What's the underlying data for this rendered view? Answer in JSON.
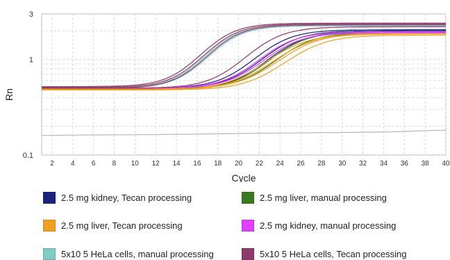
{
  "chart_data": {
    "type": "line",
    "xlabel": "Cycle",
    "ylabel": "Rn",
    "xlim": [
      1,
      40
    ],
    "ylim": [
      0.1,
      3
    ],
    "yscale": "log",
    "xticks": [
      2,
      4,
      6,
      8,
      10,
      12,
      14,
      16,
      18,
      20,
      22,
      24,
      26,
      28,
      30,
      32,
      34,
      36,
      38,
      40
    ],
    "yticks": [
      0.1,
      1,
      3
    ],
    "ytick_labels": [
      "0.1",
      "1",
      "3"
    ],
    "grid": true,
    "legend_position": "bottom",
    "baseline_series": {
      "color": "#b8b8b8",
      "x": [
        1,
        5,
        10,
        15,
        20,
        25,
        30,
        35,
        38,
        40
      ],
      "y": [
        0.16,
        0.162,
        0.163,
        0.165,
        0.168,
        0.17,
        0.172,
        0.175,
        0.18,
        0.182
      ]
    },
    "series": [
      {
        "name": "2.5 mg kidney, Tecan processing",
        "color": "#1a237e",
        "curves": [
          {
            "base": 0.5,
            "plateau": 2.0,
            "mid": 23.5,
            "k": 0.55
          },
          {
            "base": 0.49,
            "plateau": 1.95,
            "mid": 24.0,
            "k": 0.55
          },
          {
            "base": 0.5,
            "plateau": 2.05,
            "mid": 22.8,
            "k": 0.55
          }
        ]
      },
      {
        "name": "2.5 mg liver, manual processing",
        "color": "#3a7a1e",
        "curves": [
          {
            "base": 0.49,
            "plateau": 1.95,
            "mid": 24.2,
            "k": 0.55
          },
          {
            "base": 0.5,
            "plateau": 1.9,
            "mid": 24.8,
            "k": 0.55
          }
        ]
      },
      {
        "name": "2.5 mg liver, Tecan processing",
        "color": "#f0a020",
        "curves": [
          {
            "base": 0.48,
            "plateau": 1.85,
            "mid": 24.0,
            "k": 0.5
          },
          {
            "base": 0.48,
            "plateau": 1.85,
            "mid": 24.6,
            "k": 0.5
          },
          {
            "base": 0.49,
            "plateau": 1.9,
            "mid": 25.2,
            "k": 0.5
          },
          {
            "base": 0.48,
            "plateau": 1.8,
            "mid": 25.8,
            "k": 0.5
          }
        ]
      },
      {
        "name": "2.5 mg kidney, manual processing",
        "color": "#e040fb",
        "curves": [
          {
            "base": 0.5,
            "plateau": 1.95,
            "mid": 23.2,
            "k": 0.55
          },
          {
            "base": 0.5,
            "plateau": 1.9,
            "mid": 23.6,
            "k": 0.55
          }
        ]
      },
      {
        "name": "5x10 5 HeLa cells, manual processing",
        "color": "#80cbc4",
        "curves": [
          {
            "base": 0.5,
            "plateau": 2.3,
            "mid": 18.0,
            "k": 0.6
          },
          {
            "base": 0.5,
            "plateau": 2.25,
            "mid": 18.3,
            "k": 0.6
          }
        ]
      },
      {
        "name": "5x10 5 HeLa cells, Tecan processing",
        "color": "#8e3a6a",
        "curves": [
          {
            "base": 0.52,
            "plateau": 2.4,
            "mid": 17.6,
            "k": 0.6
          },
          {
            "base": 0.51,
            "plateau": 2.35,
            "mid": 17.9,
            "k": 0.6
          },
          {
            "base": 0.5,
            "plateau": 2.3,
            "mid": 18.2,
            "k": 0.6
          },
          {
            "base": 0.5,
            "plateau": 2.2,
            "mid": 22.0,
            "k": 0.55
          }
        ]
      }
    ]
  }
}
